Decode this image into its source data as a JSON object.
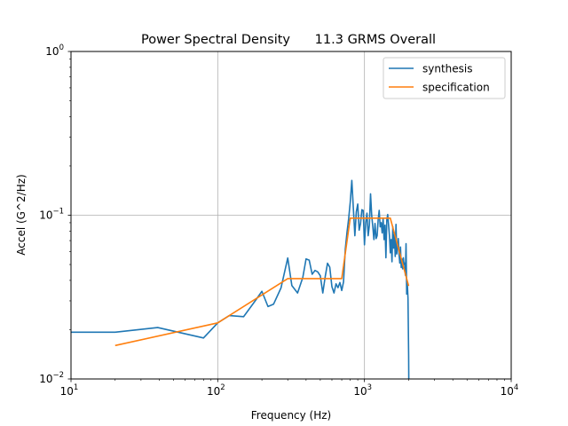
{
  "chart_data": {
    "type": "line",
    "title": "Power Spectral Density      11.3 GRMS Overall",
    "xlabel": "Frequency (Hz)",
    "ylabel": "Accel (G^2/Hz)",
    "xscale": "log",
    "yscale": "log",
    "xlim": [
      10,
      10000
    ],
    "ylim": [
      0.01,
      1
    ],
    "grid": "major",
    "legend_position": "top-right",
    "x_ticks": [
      {
        "value": 10,
        "base": "10",
        "exp": "1"
      },
      {
        "value": 100,
        "base": "10",
        "exp": "2"
      },
      {
        "value": 1000,
        "base": "10",
        "exp": "3"
      },
      {
        "value": 10000,
        "base": "10",
        "exp": "4"
      }
    ],
    "y_ticks": [
      {
        "value": 0.01,
        "base": "10",
        "exp": "−2"
      },
      {
        "value": 0.1,
        "base": "10",
        "exp": "−1"
      },
      {
        "value": 1,
        "base": "10",
        "exp": "0"
      }
    ],
    "series": [
      {
        "name": "synthesis",
        "color": "#1f77b4",
        "x": [
          10,
          20,
          39,
          80,
          100,
          120,
          150,
          180,
          200,
          220,
          240,
          270,
          300,
          320,
          350,
          380,
          400,
          420,
          440,
          460,
          480,
          500,
          520,
          540,
          560,
          580,
          600,
          620,
          640,
          660,
          680,
          700,
          720,
          740,
          760,
          780,
          800,
          820,
          840,
          860,
          880,
          900,
          920,
          940,
          960,
          980,
          1000,
          1020,
          1040,
          1060,
          1080,
          1100,
          1120,
          1140,
          1160,
          1180,
          1200,
          1220,
          1240,
          1260,
          1280,
          1300,
          1320,
          1340,
          1360,
          1380,
          1400,
          1420,
          1440,
          1460,
          1480,
          1500,
          1520,
          1540,
          1560,
          1580,
          1600,
          1620,
          1640,
          1660,
          1680,
          1700,
          1720,
          1740,
          1760,
          1780,
          1800,
          1820,
          1840,
          1860,
          1880,
          1900,
          1920,
          1940,
          1960,
          1980,
          2000,
          2005
        ],
        "y": [
          0.0193,
          0.0193,
          0.0206,
          0.0178,
          0.022,
          0.0244,
          0.024,
          0.03,
          0.0343,
          0.0277,
          0.0286,
          0.036,
          0.0548,
          0.0372,
          0.0335,
          0.0417,
          0.0541,
          0.0532,
          0.0436,
          0.046,
          0.0451,
          0.0427,
          0.0335,
          0.0421,
          0.0509,
          0.0482,
          0.0366,
          0.0335,
          0.0381,
          0.0361,
          0.0388,
          0.0347,
          0.0392,
          0.062,
          0.0785,
          0.095,
          0.12,
          0.163,
          0.11,
          0.075,
          0.105,
          0.117,
          0.081,
          0.089,
          0.108,
          0.107,
          0.066,
          0.09,
          0.103,
          0.075,
          0.087,
          0.135,
          0.1,
          0.085,
          0.071,
          0.089,
          0.072,
          0.075,
          0.094,
          0.107,
          0.085,
          0.09,
          0.078,
          0.096,
          0.071,
          0.087,
          0.055,
          0.094,
          0.101,
          0.087,
          0.075,
          0.059,
          0.071,
          0.052,
          0.085,
          0.063,
          0.076,
          0.056,
          0.088,
          0.058,
          0.064,
          0.072,
          0.058,
          0.051,
          0.064,
          0.048,
          0.054,
          0.047,
          0.055,
          0.05,
          0.051,
          0.043,
          0.067,
          0.033,
          0.038,
          0.031,
          0.014,
          0.0098
        ]
      },
      {
        "name": "specification",
        "color": "#ff7f0e",
        "x": [
          20,
          100,
          300,
          700,
          800,
          1500,
          2000
        ],
        "y": [
          0.016,
          0.022,
          0.041,
          0.041,
          0.096,
          0.096,
          0.037
        ]
      }
    ]
  }
}
